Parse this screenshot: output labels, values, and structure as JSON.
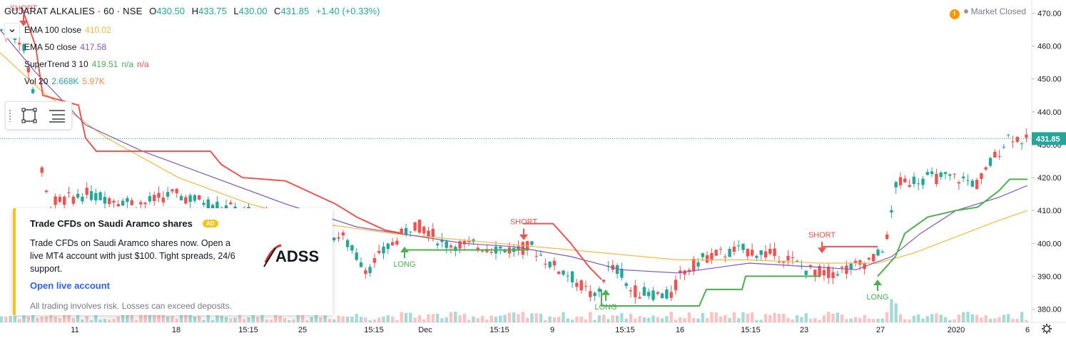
{
  "header": {
    "symbol": "GUJARAT ALKALIES · 60 · NSE",
    "open_label": "O",
    "open": "430.50",
    "high_label": "H",
    "high": "433.75",
    "low_label": "L",
    "low": "430.00",
    "close_label": "C",
    "close": "431.85",
    "change": "+1.40 (+0.33%)"
  },
  "status": {
    "warning_icon": "!",
    "market": "Market Closed"
  },
  "legend": {
    "collapse_icon": "chevron-down-icon",
    "ema100": {
      "label": "EMA 100 close",
      "value": "410.02",
      "color": "#f5b942"
    },
    "ema50": {
      "label": "EMA 50 close",
      "value": "417.58",
      "color": "#7e57c2"
    },
    "supertrend": {
      "label": "SuperTrend 3 10",
      "value": "419.51",
      "na1": "n/a",
      "na2": "n/a",
      "up_color": "#4caf50",
      "down_color": "#ef5350"
    },
    "vol": {
      "label": "Vol 20",
      "value1": "2.668K",
      "value2": "5.97K",
      "color1": "#26a69a",
      "color2": "#ef8c4a"
    }
  },
  "toolbar": {
    "rectangle_icon": "rectangle-icon",
    "settings_icon": "lines-icon"
  },
  "price_axis": {
    "labels": [
      "470.00",
      "460.00",
      "450.00",
      "440.00",
      "430.00",
      "420.00",
      "410.00",
      "400.00",
      "390.00",
      "380.00"
    ],
    "current_price": "431.85",
    "current_color": "#26a69a"
  },
  "time_axis": {
    "labels": [
      "11",
      "18",
      "15:15",
      "25",
      "15:15",
      "Dec",
      "15:15",
      "9",
      "15:15",
      "16",
      "15:15",
      "23",
      "27",
      "2020",
      "6"
    ]
  },
  "signals": {
    "short": "SHORT",
    "long": "LONG"
  },
  "ad": {
    "title": "Trade CFDs on Saudi Aramco shares",
    "badge": "AD",
    "body": "Trade CFDs on Saudi Aramco shares now. Open a live MT4 account with just $100. Tight spreads, 24/6 support.",
    "link": "Open live account",
    "risk": "All trading involves risk. Losses can exceed deposits.",
    "logo_text": "ADSS"
  },
  "colors": {
    "up": "#26a69a",
    "down": "#ef5350",
    "long_signal": "#4caf50",
    "short_signal": "#ef5350",
    "ema100": "#f5b942",
    "ema50": "#7e57c2",
    "volume_up": "#80cbc4",
    "volume_down": "#f7a9a8"
  },
  "settings_icon": "gear-icon"
}
